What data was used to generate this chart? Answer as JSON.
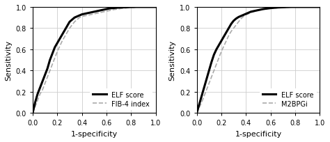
{
  "left_panel": {
    "elf_x": [
      0.0,
      0.02,
      0.04,
      0.06,
      0.08,
      0.1,
      0.12,
      0.14,
      0.16,
      0.18,
      0.2,
      0.22,
      0.24,
      0.26,
      0.28,
      0.3,
      0.32,
      0.34,
      0.36,
      0.38,
      0.4,
      0.42,
      0.44,
      0.46,
      0.48,
      0.5,
      0.52,
      0.54,
      0.56,
      0.58,
      0.6,
      0.62,
      0.64,
      0.66,
      0.68,
      0.7,
      0.72,
      0.74,
      0.76,
      0.78,
      0.8,
      0.82,
      0.84,
      0.86,
      0.88,
      0.9,
      0.92,
      0.94,
      0.96,
      0.98,
      1.0
    ],
    "elf_y": [
      0.0,
      0.1,
      0.18,
      0.24,
      0.3,
      0.36,
      0.42,
      0.5,
      0.56,
      0.62,
      0.66,
      0.7,
      0.74,
      0.78,
      0.82,
      0.86,
      0.88,
      0.9,
      0.91,
      0.92,
      0.93,
      0.935,
      0.94,
      0.945,
      0.95,
      0.955,
      0.96,
      0.965,
      0.97,
      0.975,
      0.98,
      0.985,
      0.988,
      0.99,
      0.992,
      0.994,
      0.995,
      0.996,
      0.997,
      0.998,
      0.999,
      0.999,
      1.0,
      1.0,
      1.0,
      1.0,
      1.0,
      1.0,
      1.0,
      1.0,
      1.0
    ],
    "fib4_x": [
      0.0,
      0.02,
      0.04,
      0.06,
      0.08,
      0.1,
      0.12,
      0.14,
      0.16,
      0.18,
      0.2,
      0.22,
      0.24,
      0.26,
      0.28,
      0.3,
      0.32,
      0.34,
      0.36,
      0.38,
      0.4,
      0.42,
      0.44,
      0.46,
      0.48,
      0.5,
      0.52,
      0.54,
      0.56,
      0.58,
      0.6,
      0.62,
      0.64,
      0.66,
      0.68,
      0.7,
      0.72,
      0.74,
      0.76,
      0.78,
      0.8,
      0.82,
      0.84,
      0.86,
      0.88,
      0.9,
      0.92,
      0.94,
      0.96,
      0.98,
      1.0
    ],
    "fib4_y": [
      0.0,
      0.06,
      0.12,
      0.18,
      0.22,
      0.28,
      0.34,
      0.4,
      0.46,
      0.52,
      0.58,
      0.63,
      0.68,
      0.72,
      0.76,
      0.8,
      0.83,
      0.86,
      0.88,
      0.9,
      0.91,
      0.915,
      0.92,
      0.925,
      0.93,
      0.935,
      0.94,
      0.945,
      0.95,
      0.955,
      0.96,
      0.965,
      0.97,
      0.975,
      0.978,
      0.982,
      0.986,
      0.988,
      0.99,
      0.993,
      0.995,
      0.997,
      0.998,
      0.999,
      1.0,
      1.0,
      1.0,
      1.0,
      1.0,
      1.0,
      1.0
    ],
    "legend": [
      "ELF score",
      "FIB-4 index"
    ],
    "xlabel": "1-specificity",
    "ylabel": "Sensitivity"
  },
  "right_panel": {
    "elf_x": [
      0.0,
      0.02,
      0.04,
      0.06,
      0.08,
      0.1,
      0.12,
      0.14,
      0.16,
      0.18,
      0.2,
      0.22,
      0.24,
      0.26,
      0.28,
      0.3,
      0.32,
      0.34,
      0.36,
      0.38,
      0.4,
      0.42,
      0.44,
      0.46,
      0.48,
      0.5,
      0.52,
      0.54,
      0.56,
      0.58,
      0.6,
      0.62,
      0.64,
      0.66,
      0.68,
      0.7,
      0.72,
      0.74,
      0.76,
      0.78,
      0.8,
      0.82,
      0.84,
      0.86,
      0.88,
      0.9,
      0.92,
      0.94,
      0.96,
      0.98,
      1.0
    ],
    "elf_y": [
      0.0,
      0.08,
      0.16,
      0.24,
      0.32,
      0.4,
      0.48,
      0.55,
      0.6,
      0.64,
      0.68,
      0.72,
      0.76,
      0.8,
      0.84,
      0.87,
      0.89,
      0.905,
      0.915,
      0.925,
      0.935,
      0.945,
      0.955,
      0.96,
      0.965,
      0.97,
      0.975,
      0.98,
      0.983,
      0.986,
      0.989,
      0.991,
      0.993,
      0.995,
      0.996,
      0.997,
      0.998,
      0.999,
      1.0,
      1.0,
      1.0,
      1.0,
      1.0,
      1.0,
      1.0,
      1.0,
      1.0,
      1.0,
      1.0,
      1.0,
      1.0
    ],
    "m2bpgi_x": [
      0.0,
      0.02,
      0.04,
      0.06,
      0.08,
      0.1,
      0.12,
      0.14,
      0.16,
      0.18,
      0.2,
      0.22,
      0.24,
      0.26,
      0.28,
      0.3,
      0.32,
      0.34,
      0.36,
      0.38,
      0.4,
      0.42,
      0.44,
      0.46,
      0.48,
      0.5,
      0.52,
      0.54,
      0.56,
      0.58,
      0.6,
      0.62,
      0.64,
      0.66,
      0.68,
      0.7,
      0.72,
      0.74,
      0.76,
      0.78,
      0.8,
      0.82,
      0.84,
      0.86,
      0.88,
      0.9,
      0.92,
      0.94,
      0.96,
      0.98,
      1.0
    ],
    "m2bpgi_y": [
      0.0,
      0.05,
      0.1,
      0.16,
      0.22,
      0.28,
      0.34,
      0.4,
      0.46,
      0.52,
      0.58,
      0.63,
      0.68,
      0.73,
      0.77,
      0.8,
      0.83,
      0.86,
      0.89,
      0.91,
      0.925,
      0.935,
      0.945,
      0.955,
      0.962,
      0.968,
      0.973,
      0.977,
      0.98,
      0.983,
      0.986,
      0.988,
      0.99,
      0.992,
      0.993,
      0.994,
      0.995,
      0.996,
      0.997,
      0.998,
      0.999,
      1.0,
      1.0,
      1.0,
      1.0,
      1.0,
      1.0,
      1.0,
      1.0,
      1.0,
      1.0
    ],
    "legend": [
      "ELF score",
      "M2BPGi"
    ],
    "xlabel": "1-specificity",
    "ylabel": "Sensitivity"
  },
  "elf_color": "#000000",
  "fib4_color": "#aaaaaa",
  "m2bpgi_color": "#aaaaaa",
  "elf_linewidth": 2.2,
  "secondary_linewidth": 1.2,
  "grid_color": "#cccccc",
  "tick_fontsize": 7,
  "label_fontsize": 8,
  "legend_fontsize": 7,
  "xlim": [
    0.0,
    1.0
  ],
  "ylim": [
    0.0,
    1.0
  ],
  "xticks": [
    0.0,
    0.2,
    0.4,
    0.6,
    0.8,
    1.0
  ],
  "yticks": [
    0.0,
    0.2,
    0.4,
    0.6,
    0.8,
    1.0
  ]
}
